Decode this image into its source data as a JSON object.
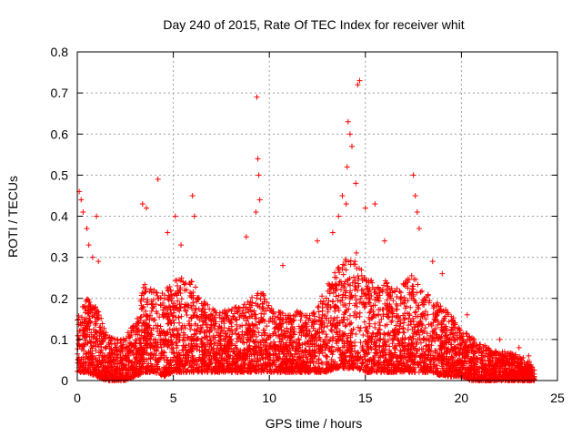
{
  "chart_data": {
    "type": "scatter",
    "title": "Day 240 of 2015, Rate Of TEC Index for receiver whit",
    "xlabel": "GPS time / hours",
    "ylabel": "ROTI / TECUs",
    "xlim": [
      0,
      25
    ],
    "ylim": [
      0,
      0.8
    ],
    "x_ticks": [
      0,
      5,
      10,
      15,
      20,
      25
    ],
    "x_tick_labels": [
      "0",
      "5",
      "10",
      "15",
      "20",
      "25"
    ],
    "y_ticks": [
      0,
      0.1,
      0.2,
      0.3,
      0.4,
      0.5,
      0.6,
      0.7,
      0.8
    ],
    "y_tick_labels": [
      "0",
      "0.1",
      "0.2",
      "0.3",
      "0.4",
      "0.5",
      "0.6",
      "0.7",
      "0.8"
    ],
    "grid": true,
    "marker": "+",
    "color": "#ff0000",
    "envelope": {
      "x": [
        0,
        0.5,
        1,
        1.5,
        2,
        2.5,
        3,
        3.5,
        4,
        4.5,
        5,
        5.5,
        6,
        6.5,
        7,
        7.5,
        8,
        8.5,
        9,
        9.5,
        10,
        10.5,
        11,
        11.5,
        12,
        12.5,
        13,
        13.5,
        14,
        14.5,
        15,
        15.5,
        16,
        16.5,
        17,
        17.5,
        18,
        18.5,
        19,
        19.5,
        20,
        20.5,
        21,
        21.5,
        22,
        22.5,
        23,
        23.5,
        23.8
      ],
      "upper": [
        0.16,
        0.2,
        0.18,
        0.12,
        0.1,
        0.11,
        0.14,
        0.24,
        0.22,
        0.22,
        0.24,
        0.26,
        0.24,
        0.2,
        0.18,
        0.17,
        0.18,
        0.18,
        0.2,
        0.22,
        0.2,
        0.17,
        0.16,
        0.17,
        0.16,
        0.18,
        0.24,
        0.27,
        0.3,
        0.32,
        0.25,
        0.24,
        0.25,
        0.22,
        0.24,
        0.26,
        0.22,
        0.2,
        0.18,
        0.16,
        0.12,
        0.11,
        0.09,
        0.08,
        0.07,
        0.07,
        0.06,
        0.05,
        0.03
      ],
      "lower": [
        0.02,
        0.02,
        0.01,
        0.0,
        0.0,
        0.0,
        0.01,
        0.02,
        0.02,
        0.01,
        0.02,
        0.02,
        0.02,
        0.02,
        0.02,
        0.02,
        0.02,
        0.02,
        0.02,
        0.02,
        0.02,
        0.02,
        0.02,
        0.02,
        0.02,
        0.02,
        0.02,
        0.03,
        0.03,
        0.03,
        0.02,
        0.02,
        0.02,
        0.02,
        0.02,
        0.02,
        0.02,
        0.02,
        0.01,
        0.01,
        0.01,
        0.0,
        0.0,
        0.0,
        0.0,
        0.0,
        0.0,
        0.0,
        0.0
      ]
    },
    "outliers": [
      [
        0.1,
        0.46
      ],
      [
        0.2,
        0.44
      ],
      [
        0.3,
        0.41
      ],
      [
        0.5,
        0.37
      ],
      [
        0.6,
        0.33
      ],
      [
        0.8,
        0.3
      ],
      [
        1.0,
        0.4
      ],
      [
        1.1,
        0.29
      ],
      [
        3.4,
        0.43
      ],
      [
        3.6,
        0.42
      ],
      [
        4.2,
        0.49
      ],
      [
        4.7,
        0.36
      ],
      [
        5.1,
        0.4
      ],
      [
        5.4,
        0.33
      ],
      [
        6.0,
        0.45
      ],
      [
        6.1,
        0.4
      ],
      [
        8.8,
        0.35
      ],
      [
        9.3,
        0.41
      ],
      [
        9.35,
        0.69
      ],
      [
        9.4,
        0.54
      ],
      [
        9.45,
        0.5
      ],
      [
        9.5,
        0.44
      ],
      [
        10.7,
        0.28
      ],
      [
        12.5,
        0.34
      ],
      [
        13.3,
        0.36
      ],
      [
        13.6,
        0.4
      ],
      [
        13.8,
        0.45
      ],
      [
        14.0,
        0.43
      ],
      [
        14.05,
        0.52
      ],
      [
        14.1,
        0.63
      ],
      [
        14.2,
        0.6
      ],
      [
        14.3,
        0.57
      ],
      [
        14.6,
        0.72
      ],
      [
        14.7,
        0.73
      ],
      [
        14.5,
        0.48
      ],
      [
        15.0,
        0.42
      ],
      [
        15.5,
        0.43
      ],
      [
        16.0,
        0.34
      ],
      [
        17.5,
        0.5
      ],
      [
        17.6,
        0.45
      ],
      [
        17.7,
        0.41
      ],
      [
        17.8,
        0.37
      ],
      [
        18.5,
        0.29
      ],
      [
        19.0,
        0.26
      ],
      [
        20.3,
        0.16
      ],
      [
        22.0,
        0.1
      ],
      [
        23.0,
        0.08
      ],
      [
        23.5,
        0.06
      ]
    ]
  }
}
